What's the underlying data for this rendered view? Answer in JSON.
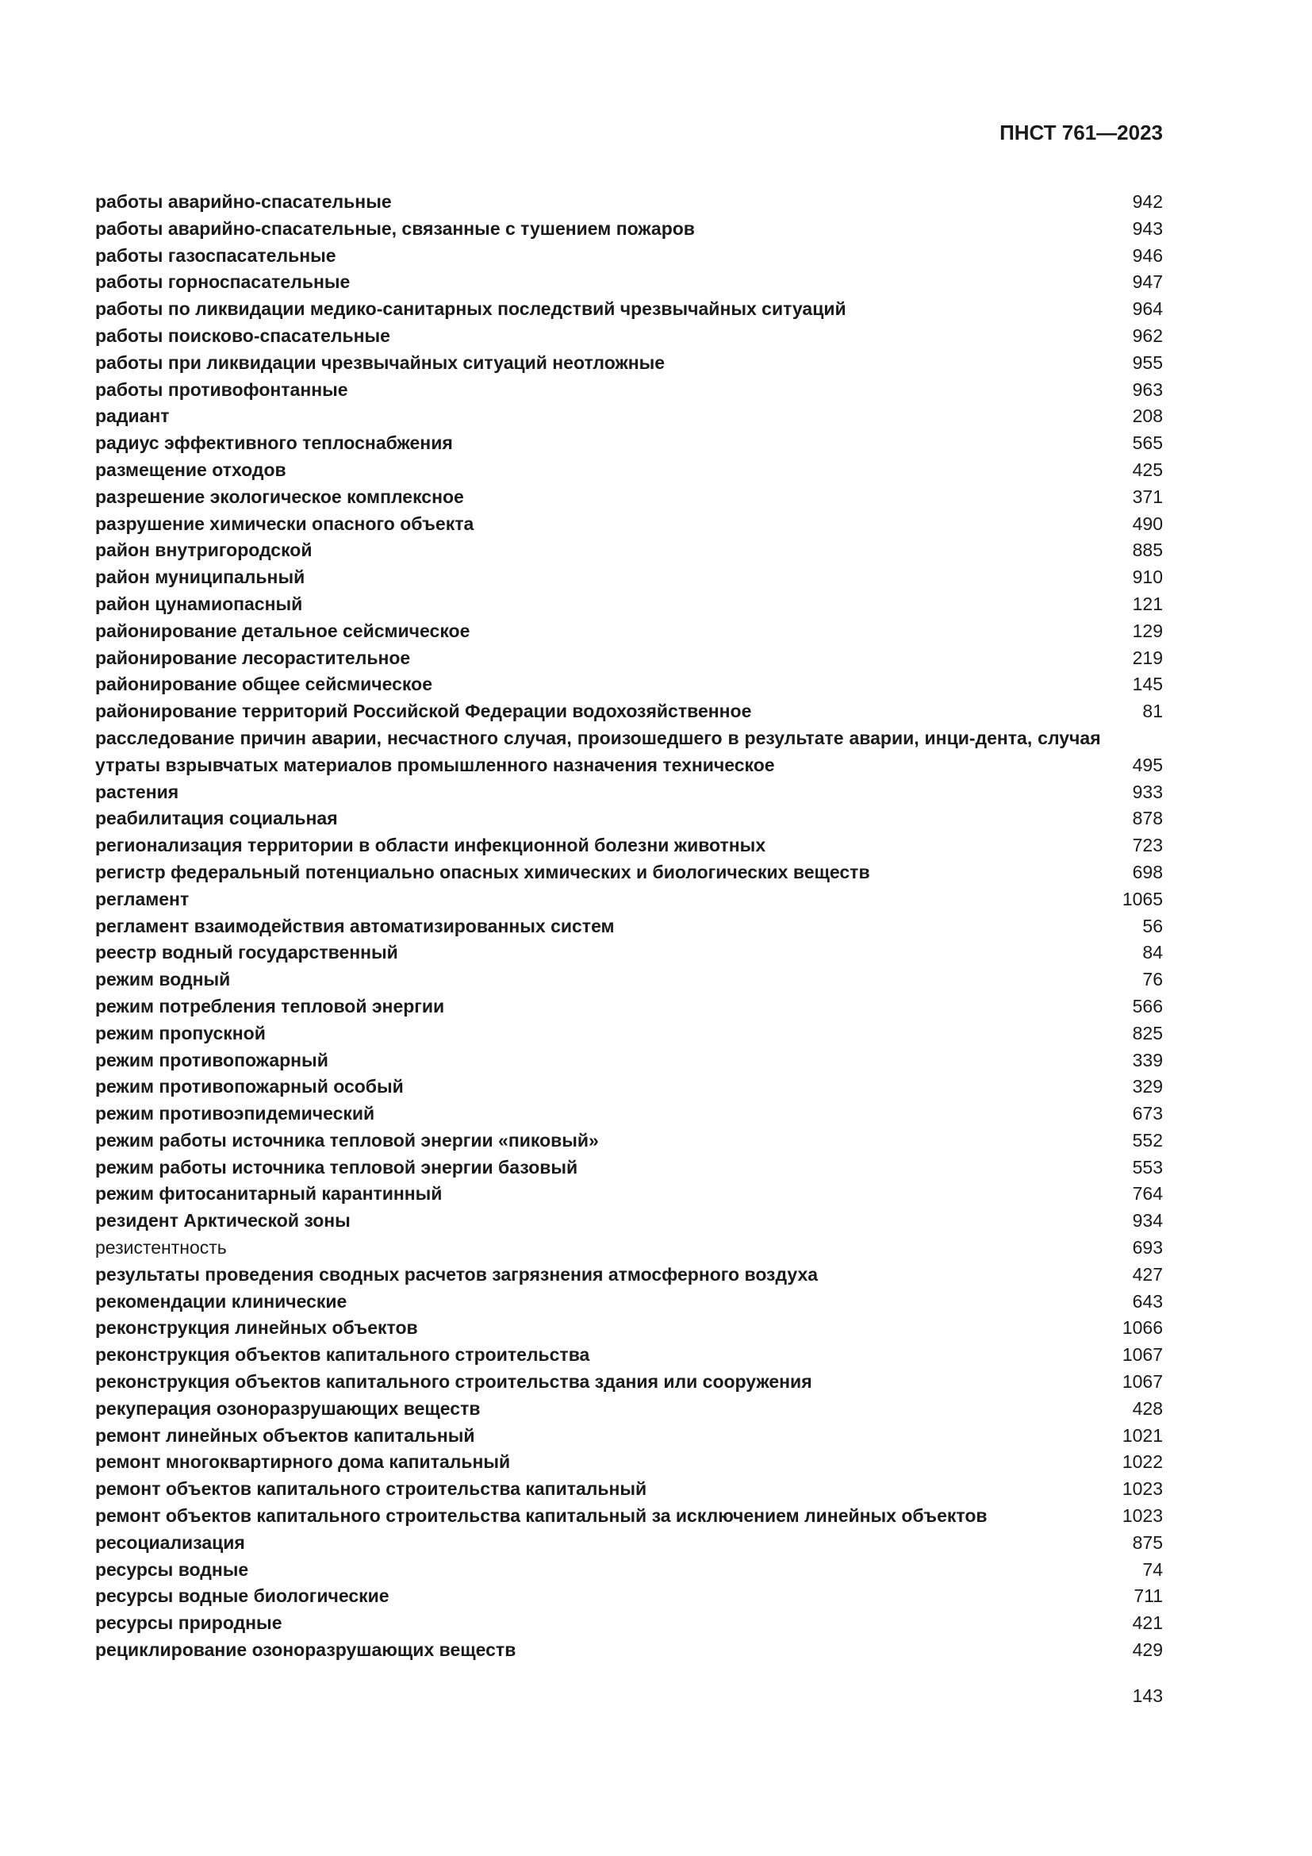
{
  "header": {
    "doc_id": "ПНСТ 761—2023"
  },
  "entries": [
    {
      "term": "работы аварийно-спасательные",
      "page": "942"
    },
    {
      "term": "работы аварийно-спасательные, связанные с тушением пожаров",
      "page": "943"
    },
    {
      "term": "работы газоспасательные",
      "page": "946"
    },
    {
      "term": "работы горноспасательные",
      "page": "947"
    },
    {
      "term": "работы по ликвидации медико-санитарных последствий чрезвычайных ситуаций",
      "page": "964"
    },
    {
      "term": "работы поисково-спасательные",
      "page": "962"
    },
    {
      "term": "работы при ликвидации чрезвычайных ситуаций неотложные",
      "page": "955"
    },
    {
      "term": "работы противофонтанные",
      "page": "963"
    },
    {
      "term": "радиант",
      "page": "208"
    },
    {
      "term": "радиус эффективного теплоснабжения",
      "page": "565"
    },
    {
      "term": "размещение отходов",
      "page": "425"
    },
    {
      "term": "разрешение экологическое комплексное",
      "page": "371"
    },
    {
      "term": "разрушение химически опасного объекта",
      "page": "490"
    },
    {
      "term": "район внутригородской",
      "page": "885"
    },
    {
      "term": "район муниципальный",
      "page": "910"
    },
    {
      "term": "район цунамиопасный",
      "page": "121"
    },
    {
      "term": "районирование детальное сейсмическое",
      "page": "129"
    },
    {
      "term": "районирование лесорастительное",
      "page": "219"
    },
    {
      "term": "районирование общее сейсмическое",
      "page": "145"
    },
    {
      "term": "районирование территорий Российской Федерации водохозяйственное",
      "page": "81"
    },
    {
      "term": "расследование причин аварии, несчастного случая, произошедшего в результате аварии, инци-дента, случая утраты взрывчатых материалов промышленного назначения техническое",
      "page": "495"
    },
    {
      "term": "растения",
      "page": "933"
    },
    {
      "term": "реабилитация социальная",
      "page": "878"
    },
    {
      "term": "регионализация территории в области инфекционной болезни животных",
      "page": "723"
    },
    {
      "term": "регистр федеральный потенциально опасных химических и биологических веществ",
      "page": "698"
    },
    {
      "term": "регламент",
      "page": "1065"
    },
    {
      "term": "регламент взаимодействия автоматизированных систем",
      "page": "56"
    },
    {
      "term": "реестр водный государственный",
      "page": "84"
    },
    {
      "term": "режим водный",
      "page": "76"
    },
    {
      "term": "режим потребления тепловой энергии",
      "page": "566"
    },
    {
      "term": "режим пропускной",
      "page": "825"
    },
    {
      "term": "режим противопожарный",
      "page": "339"
    },
    {
      "term": "режим противопожарный особый",
      "page": "329"
    },
    {
      "term": "режим противоэпидемический",
      "page": "673"
    },
    {
      "term": "режим работы источника тепловой энергии «пиковый»",
      "page": "552"
    },
    {
      "term": "режим работы источника тепловой энергии базовый",
      "page": "553"
    },
    {
      "term": "режим фитосанитарный карантинный",
      "page": "764"
    },
    {
      "term": "резидент Арктической зоны",
      "page": "934"
    },
    {
      "term": "резистентность",
      "page": "693",
      "style": "regular"
    },
    {
      "term": "результаты проведения сводных расчетов загрязнения атмосферного воздуха",
      "page": "427"
    },
    {
      "term": "рекомендации клинические",
      "page": "643"
    },
    {
      "term": "реконструкция линейных объектов",
      "page": "1066"
    },
    {
      "term": "реконструкция объектов капитального строительства",
      "page": "1067"
    },
    {
      "term": "реконструкция объектов капитального строительства здания или сооружения",
      "page": "1067"
    },
    {
      "term": "рекуперация озоноразрушающих веществ",
      "page": "428"
    },
    {
      "term": "ремонт линейных объектов капитальный",
      "page": "1021"
    },
    {
      "term": "ремонт многоквартирного дома капитальный",
      "page": "1022"
    },
    {
      "term": "ремонт объектов капитального строительства капитальный",
      "page": "1023"
    },
    {
      "term": "ремонт объектов капитального строительства капитальный за исключением линейных объектов",
      "page": "1023"
    },
    {
      "term": "ресоциализация",
      "page": "875"
    },
    {
      "term": "ресурсы водные",
      "page": "74"
    },
    {
      "term": "ресурсы водные биологические",
      "page": "711"
    },
    {
      "term": "ресурсы природные",
      "page": "421"
    },
    {
      "term": "рециклирование озоноразрушающих веществ",
      "page": "429"
    }
  ],
  "footer": {
    "page_number": "143"
  }
}
